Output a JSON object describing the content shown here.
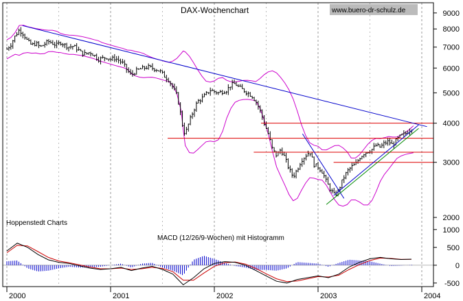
{
  "chart_data": {
    "type": "line",
    "title": "DAX-Wochenchart",
    "watermark": "www.buero-dr-schulz.de",
    "source_label": "Hoppenstedt Charts",
    "x_tick_labels": [
      "2000",
      "2001",
      "2002",
      "2003",
      "2004"
    ],
    "x_range": [
      2000.0,
      2004.0
    ],
    "price_panel": {
      "y_scale": "log",
      "y_range": [
        1800,
        9700
      ],
      "y_tick_labels": [
        "9000",
        "8000",
        "7000",
        "6000",
        "5000",
        "4000",
        "3000",
        "2000"
      ],
      "y_tick_values": [
        9000,
        8000,
        7000,
        6000,
        5000,
        4000,
        3000,
        2000
      ],
      "series_color": "#000000",
      "band_color": "#cc00cc",
      "weekly_close": [
        [
          2000.0,
          6900
        ],
        [
          2000.04,
          7150
        ],
        [
          2000.08,
          7600
        ],
        [
          2000.12,
          7950
        ],
        [
          2000.16,
          7700
        ],
        [
          2000.2,
          7300
        ],
        [
          2000.24,
          7100
        ],
        [
          2000.28,
          7200
        ],
        [
          2000.32,
          7000
        ],
        [
          2000.36,
          7150
        ],
        [
          2000.4,
          7300
        ],
        [
          2000.44,
          7200
        ],
        [
          2000.48,
          7100
        ],
        [
          2000.52,
          7250
        ],
        [
          2000.56,
          7100
        ],
        [
          2000.6,
          7000
        ],
        [
          2000.64,
          7050
        ],
        [
          2000.68,
          6900
        ],
        [
          2000.72,
          6700
        ],
        [
          2000.76,
          6650
        ],
        [
          2000.8,
          6750
        ],
        [
          2000.84,
          6600
        ],
        [
          2000.88,
          6400
        ],
        [
          2000.92,
          6450
        ],
        [
          2000.96,
          6500
        ],
        [
          2001.0,
          6400
        ],
        [
          2001.04,
          6450
        ],
        [
          2001.08,
          6350
        ],
        [
          2001.12,
          6200
        ],
        [
          2001.16,
          5900
        ],
        [
          2001.2,
          5700
        ],
        [
          2001.24,
          5850
        ],
        [
          2001.28,
          5950
        ],
        [
          2001.32,
          6000
        ],
        [
          2001.36,
          6050
        ],
        [
          2001.4,
          6000
        ],
        [
          2001.44,
          5950
        ],
        [
          2001.48,
          5850
        ],
        [
          2001.52,
          5650
        ],
        [
          2001.56,
          5500
        ],
        [
          2001.6,
          5200
        ],
        [
          2001.64,
          4900
        ],
        [
          2001.68,
          4200
        ],
        [
          2001.7,
          3800
        ],
        [
          2001.72,
          3700
        ],
        [
          2001.76,
          4050
        ],
        [
          2001.8,
          4400
        ],
        [
          2001.84,
          4700
        ],
        [
          2001.88,
          4800
        ],
        [
          2001.92,
          4950
        ],
        [
          2001.96,
          5100
        ],
        [
          2002.0,
          5050
        ],
        [
          2002.04,
          5000
        ],
        [
          2002.08,
          5050
        ],
        [
          2002.12,
          5100
        ],
        [
          2002.16,
          5300
        ],
        [
          2002.2,
          5350
        ],
        [
          2002.24,
          5200
        ],
        [
          2002.28,
          5100
        ],
        [
          2002.32,
          5000
        ],
        [
          2002.36,
          4900
        ],
        [
          2002.4,
          4700
        ],
        [
          2002.44,
          4400
        ],
        [
          2002.48,
          4000
        ],
        [
          2002.52,
          3700
        ],
        [
          2002.56,
          3300
        ],
        [
          2002.6,
          3150
        ],
        [
          2002.64,
          3300
        ],
        [
          2002.68,
          3100
        ],
        [
          2002.72,
          2850
        ],
        [
          2002.76,
          2700
        ],
        [
          2002.8,
          2850
        ],
        [
          2002.84,
          3050
        ],
        [
          2002.88,
          3150
        ],
        [
          2002.92,
          3250
        ],
        [
          2002.96,
          2950
        ],
        [
          2003.0,
          2900
        ],
        [
          2003.04,
          2800
        ],
        [
          2003.08,
          2600
        ],
        [
          2003.12,
          2450
        ],
        [
          2003.16,
          2350
        ],
        [
          2003.2,
          2450
        ],
        [
          2003.24,
          2650
        ],
        [
          2003.28,
          2800
        ],
        [
          2003.32,
          2900
        ],
        [
          2003.36,
          2950
        ],
        [
          2003.4,
          3100
        ],
        [
          2003.44,
          3200
        ],
        [
          2003.48,
          3250
        ],
        [
          2003.52,
          3300
        ],
        [
          2003.56,
          3400
        ],
        [
          2003.6,
          3350
        ],
        [
          2003.64,
          3450
        ],
        [
          2003.68,
          3500
        ],
        [
          2003.72,
          3400
        ],
        [
          2003.76,
          3550
        ],
        [
          2003.8,
          3650
        ],
        [
          2003.84,
          3700
        ],
        [
          2003.88,
          3800
        ],
        [
          2003.92,
          3900
        ]
      ],
      "trendlines": [
        {
          "color": "#0000cc",
          "points": [
            [
              2000.15,
              8200
            ],
            [
              2004.05,
              3900
            ]
          ]
        },
        {
          "color": "#0000cc",
          "points": [
            [
              2002.85,
              3700
            ],
            [
              2003.25,
              2300
            ]
          ]
        },
        {
          "color": "#008800",
          "points": [
            [
              2003.08,
              2200
            ],
            [
              2003.97,
              3850
            ]
          ]
        },
        {
          "color": "#0000cc",
          "points": [
            [
              2003.15,
              2350
            ],
            [
              2003.97,
              3950
            ]
          ]
        }
      ],
      "horizontal_levels": [
        {
          "value": 4000,
          "x_start": 2002.45
        },
        {
          "value": 3580,
          "x_start": 2001.55
        },
        {
          "value": 3230,
          "x_start": 2002.38
        },
        {
          "value": 3000,
          "x_start": 2003.15
        }
      ],
      "level_color": "#dd0000"
    },
    "macd_panel": {
      "title": "MACD (12/26/9-Wochen) mit Histogramm",
      "y_range": [
        -600,
        900
      ],
      "y_tick_labels": [
        "1000",
        "500",
        "0",
        "-500"
      ],
      "y_tick_values": [
        1000,
        500,
        0,
        -500
      ],
      "macd_line": [
        [
          2000.0,
          400
        ],
        [
          2000.1,
          620
        ],
        [
          2000.2,
          500
        ],
        [
          2000.3,
          300
        ],
        [
          2000.4,
          150
        ],
        [
          2000.5,
          80
        ],
        [
          2000.6,
          50
        ],
        [
          2000.7,
          -20
        ],
        [
          2000.8,
          -80
        ],
        [
          2000.9,
          -120
        ],
        [
          2001.0,
          -100
        ],
        [
          2001.1,
          -60
        ],
        [
          2001.2,
          -150
        ],
        [
          2001.3,
          -80
        ],
        [
          2001.4,
          -30
        ],
        [
          2001.5,
          -120
        ],
        [
          2001.6,
          -250
        ],
        [
          2001.7,
          -550
        ],
        [
          2001.8,
          -350
        ],
        [
          2001.9,
          -100
        ],
        [
          2002.0,
          50
        ],
        [
          2002.1,
          100
        ],
        [
          2002.2,
          80
        ],
        [
          2002.3,
          0
        ],
        [
          2002.4,
          -150
        ],
        [
          2002.5,
          -300
        ],
        [
          2002.6,
          -450
        ],
        [
          2002.7,
          -500
        ],
        [
          2002.8,
          -400
        ],
        [
          2002.9,
          -350
        ],
        [
          2003.0,
          -300
        ],
        [
          2003.1,
          -350
        ],
        [
          2003.2,
          -250
        ],
        [
          2003.3,
          -50
        ],
        [
          2003.4,
          80
        ],
        [
          2003.5,
          180
        ],
        [
          2003.6,
          220
        ],
        [
          2003.7,
          180
        ],
        [
          2003.8,
          160
        ],
        [
          2003.9,
          170
        ]
      ],
      "signal_line": [
        [
          2000.0,
          350
        ],
        [
          2000.1,
          560
        ],
        [
          2000.2,
          540
        ],
        [
          2000.3,
          380
        ],
        [
          2000.4,
          220
        ],
        [
          2000.5,
          120
        ],
        [
          2000.6,
          70
        ],
        [
          2000.7,
          10
        ],
        [
          2000.8,
          -50
        ],
        [
          2000.9,
          -100
        ],
        [
          2001.0,
          -100
        ],
        [
          2001.1,
          -80
        ],
        [
          2001.2,
          -120
        ],
        [
          2001.3,
          -100
        ],
        [
          2001.4,
          -60
        ],
        [
          2001.5,
          -90
        ],
        [
          2001.6,
          -180
        ],
        [
          2001.7,
          -420
        ],
        [
          2001.8,
          -420
        ],
        [
          2001.9,
          -220
        ],
        [
          2002.0,
          -30
        ],
        [
          2002.1,
          70
        ],
        [
          2002.2,
          90
        ],
        [
          2002.3,
          30
        ],
        [
          2002.4,
          -90
        ],
        [
          2002.5,
          -240
        ],
        [
          2002.6,
          -380
        ],
        [
          2002.7,
          -460
        ],
        [
          2002.8,
          -440
        ],
        [
          2002.9,
          -380
        ],
        [
          2003.0,
          -320
        ],
        [
          2003.1,
          -330
        ],
        [
          2003.2,
          -280
        ],
        [
          2003.3,
          -120
        ],
        [
          2003.4,
          20
        ],
        [
          2003.5,
          130
        ],
        [
          2003.6,
          200
        ],
        [
          2003.7,
          190
        ],
        [
          2003.8,
          165
        ],
        [
          2003.9,
          165
        ]
      ],
      "macd_color": "#000000",
      "signal_color": "#cc0000",
      "histogram_color": "#0000cc"
    }
  }
}
